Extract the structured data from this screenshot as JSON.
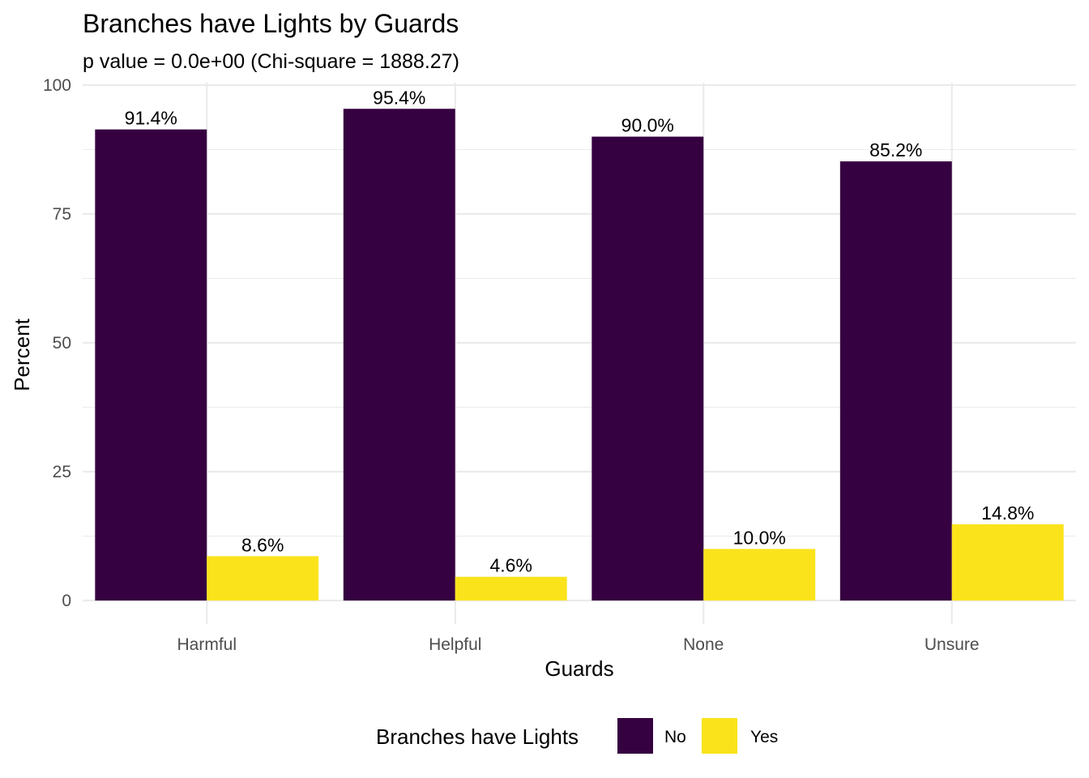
{
  "chart_data": {
    "type": "bar",
    "title": "Branches have Lights by Guards",
    "subtitle": "p value = 0.0e+00 (Chi-square = 1888.27)",
    "xlabel": "Guards",
    "ylabel": "Percent",
    "categories": [
      "Harmful",
      "Helpful",
      "None",
      "Unsure"
    ],
    "series": [
      {
        "name": "No",
        "color": "#360140",
        "values": [
          91.4,
          95.4,
          90.0,
          85.2
        ],
        "labels": [
          "91.4%",
          "95.4%",
          "90.0%",
          "85.2%"
        ]
      },
      {
        "name": "Yes",
        "color": "#FBE31C",
        "values": [
          8.6,
          4.6,
          10.0,
          14.8
        ],
        "labels": [
          "8.6%",
          "4.6%",
          "10.0%",
          "14.8%"
        ]
      }
    ],
    "ylim": [
      0,
      100
    ],
    "yticks": [
      0,
      25,
      50,
      75,
      100
    ],
    "ytick_labels": [
      "0",
      "25",
      "50",
      "75",
      "100"
    ],
    "grid": true,
    "legend": {
      "title": "Branches have Lights",
      "position": "bottom",
      "entries": [
        "No",
        "Yes"
      ]
    }
  }
}
